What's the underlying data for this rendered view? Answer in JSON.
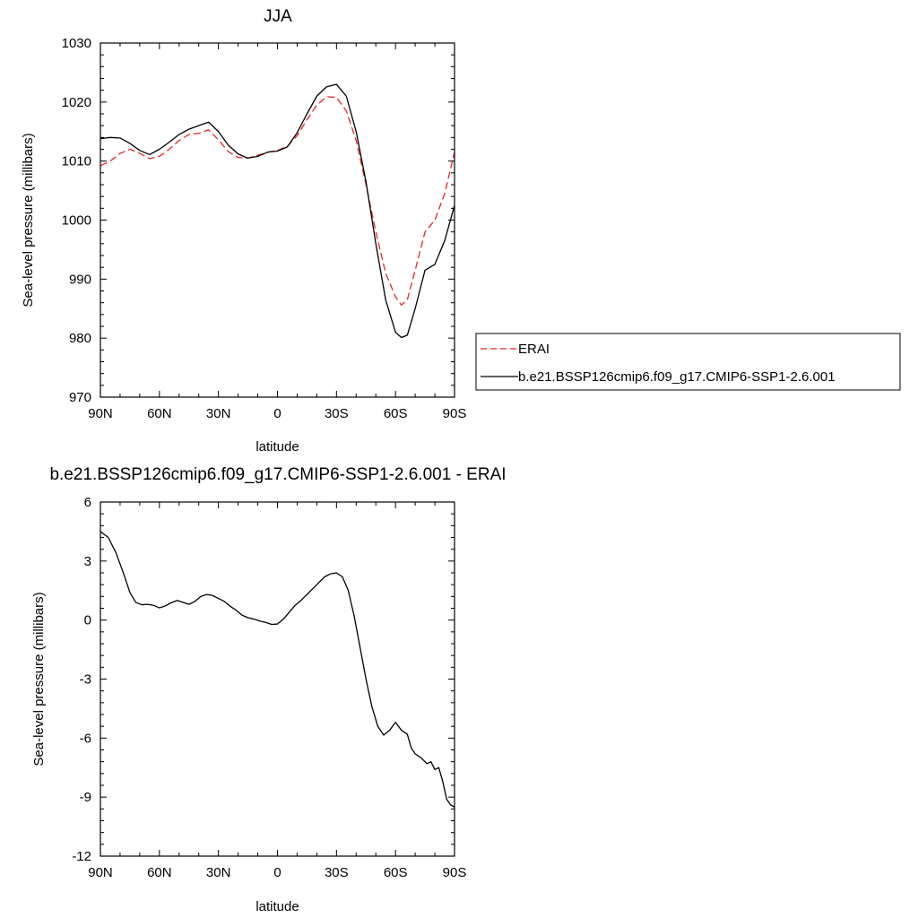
{
  "chart_data": [
    {
      "type": "line",
      "title": "JJA",
      "xlabel": "latitude",
      "ylabel": "Sea-level pressure (millibars)",
      "xlim": [
        -90,
        90
      ],
      "ylim": [
        970,
        1030
      ],
      "x_ticks": [
        -90,
        -60,
        -30,
        0,
        30,
        60,
        90
      ],
      "x_tick_labels": [
        "90N",
        "60N",
        "30N",
        "0",
        "30S",
        "60S",
        "90S"
      ],
      "y_ticks": [
        970,
        980,
        990,
        1000,
        1010,
        1020,
        1030
      ],
      "y_tick_labels": [
        "970",
        "980",
        "990",
        "1000",
        "1010",
        "1020",
        "1030"
      ],
      "legend_position": "right",
      "series": [
        {
          "name": "ERAI",
          "color": "#e8252a",
          "style": "dashed",
          "x": [
            -90,
            -85,
            -80,
            -75,
            -70,
            -65,
            -60,
            -55,
            -50,
            -45,
            -40,
            -35,
            -30,
            -25,
            -20,
            -15,
            -10,
            -5,
            0,
            5,
            10,
            15,
            20,
            25,
            30,
            35,
            40,
            45,
            50,
            55,
            60,
            63,
            66,
            70,
            75,
            80,
            85,
            90
          ],
          "y": [
            1009.2,
            1010.0,
            1011.3,
            1012.0,
            1011.3,
            1010.4,
            1010.8,
            1012.0,
            1013.5,
            1014.5,
            1014.7,
            1015.3,
            1013.6,
            1011.6,
            1010.6,
            1010.5,
            1011.0,
            1011.5,
            1011.8,
            1012.5,
            1014.3,
            1017.0,
            1019.5,
            1020.9,
            1020.8,
            1018.5,
            1013.5,
            1006.0,
            998.0,
            991.0,
            987.0,
            985.6,
            986.5,
            991.5,
            998.0,
            1000.0,
            1004.5,
            1011.5
          ]
        },
        {
          "name": "b.e21.BSSP126cmip6.f09_g17.CMIP6-SSP1-2.6.001",
          "color": "#000000",
          "style": "solid",
          "x": [
            -90,
            -85,
            -80,
            -75,
            -70,
            -65,
            -60,
            -55,
            -50,
            -45,
            -40,
            -35,
            -30,
            -25,
            -20,
            -15,
            -10,
            -5,
            0,
            5,
            10,
            15,
            20,
            25,
            30,
            35,
            40,
            45,
            50,
            55,
            60,
            63,
            66,
            70,
            75,
            80,
            85,
            90
          ],
          "y": [
            1013.8,
            1014.0,
            1013.9,
            1013.0,
            1011.8,
            1011.1,
            1012.0,
            1013.2,
            1014.5,
            1015.4,
            1016.0,
            1016.6,
            1015.0,
            1012.7,
            1011.2,
            1010.5,
            1010.8,
            1011.5,
            1011.7,
            1012.4,
            1014.8,
            1018.0,
            1021.0,
            1022.6,
            1023.0,
            1021.0,
            1015.0,
            1006.5,
            996.0,
            986.5,
            981.0,
            980.1,
            980.5,
            985.0,
            991.5,
            992.5,
            996.5,
            1002.5
          ]
        }
      ]
    },
    {
      "type": "line",
      "title": "b.e21.BSSP126cmip6.f09_g17.CMIP6-SSP1-2.6.001 - ERAI",
      "xlabel": "latitude",
      "ylabel": "Sea-level pressure (millibars)",
      "xlim": [
        -90,
        90
      ],
      "ylim": [
        -12,
        6
      ],
      "x_ticks": [
        -90,
        -60,
        -30,
        0,
        30,
        60,
        90
      ],
      "x_tick_labels": [
        "90N",
        "60N",
        "30N",
        "0",
        "30S",
        "60S",
        "90S"
      ],
      "y_ticks": [
        -12,
        -9,
        -6,
        -3,
        0,
        3,
        6
      ],
      "y_tick_labels": [
        "-12",
        "-9",
        "-6",
        "-3",
        "0",
        "3",
        "6"
      ],
      "series": [
        {
          "color": "#000000",
          "style": "solid",
          "x": [
            -90,
            -86,
            -82,
            -78,
            -75,
            -72,
            -69,
            -66,
            -63,
            -60,
            -57,
            -54,
            -51,
            -48,
            -45,
            -42,
            -39,
            -36,
            -33,
            -30,
            -27,
            -24,
            -21,
            -18,
            -15,
            -12,
            -9,
            -6,
            -3,
            0,
            3,
            6,
            9,
            12,
            15,
            18,
            21,
            24,
            27,
            30,
            33,
            36,
            39,
            42,
            45,
            48,
            51,
            54,
            57,
            60,
            63,
            66,
            68,
            70,
            73,
            76,
            78,
            80,
            82,
            84,
            86,
            88,
            90
          ],
          "y": [
            4.5,
            4.2,
            3.4,
            2.3,
            1.4,
            0.9,
            0.78,
            0.8,
            0.75,
            0.62,
            0.72,
            0.88,
            1.0,
            0.9,
            0.8,
            0.95,
            1.2,
            1.3,
            1.25,
            1.1,
            0.95,
            0.7,
            0.5,
            0.25,
            0.12,
            0.05,
            -0.05,
            -0.12,
            -0.22,
            -0.2,
            0.05,
            0.4,
            0.75,
            1.0,
            1.3,
            1.6,
            1.9,
            2.2,
            2.35,
            2.4,
            2.2,
            1.5,
            0.2,
            -1.4,
            -3.0,
            -4.4,
            -5.4,
            -5.85,
            -5.6,
            -5.2,
            -5.6,
            -5.8,
            -6.5,
            -6.8,
            -7.0,
            -7.3,
            -7.2,
            -7.6,
            -7.5,
            -8.2,
            -9.1,
            -9.4,
            -9.5
          ]
        }
      ]
    }
  ]
}
